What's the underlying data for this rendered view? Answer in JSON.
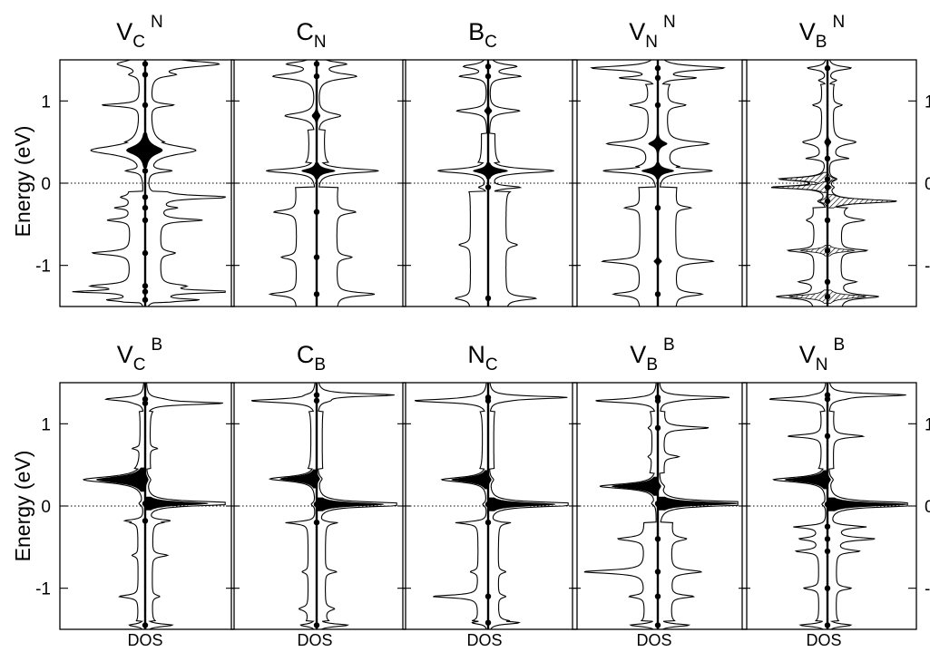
{
  "figure": {
    "ylabel": "Energy (eV)",
    "xlabel": "DOS"
  },
  "chart_data": {
    "type": "line",
    "ylabel": "Energy (eV)",
    "xlabel": "DOS",
    "ylim": [
      -1.5,
      1.5
    ],
    "yticks": [
      -1,
      0,
      1
    ],
    "grid": false,
    "zero_line": "dotted",
    "panels": [
      {
        "row": 0,
        "title": {
          "main": "V",
          "sub": "C",
          "sup": "N"
        },
        "peaks": [
          {
            "e": 1.45,
            "w": 0.09,
            "ls": 0.3,
            "rs": 0.9
          },
          {
            "e": 1.32,
            "w": 0.05,
            "ls": 0.12,
            "rs": 0.25
          },
          {
            "e": 0.95,
            "w": 0.04,
            "ls": 0.5,
            "rs": 0.3
          },
          {
            "e": 0.4,
            "w": 0.13,
            "ls": 0.7,
            "rs": 0.65,
            "fill": 0.35
          },
          {
            "e": 0.15,
            "w": 0.04,
            "ls": 0.2,
            "rs": 0.3
          },
          {
            "e": -0.17,
            "w": 0.04,
            "ls": 0.12,
            "rs": 1.0
          },
          {
            "e": -0.3,
            "w": 0.03,
            "ls": 0.2,
            "rs": 0.2
          },
          {
            "e": -0.45,
            "w": 0.04,
            "ls": 0.3,
            "rs": 0.55
          },
          {
            "e": -0.85,
            "w": 0.05,
            "ls": 0.5,
            "rs": 0.2
          },
          {
            "e": -1.25,
            "w": 0.05,
            "ls": 0.5,
            "rs": 0.3
          },
          {
            "e": -1.32,
            "w": 0.03,
            "ls": 0.7,
            "rs": 1.2
          },
          {
            "e": -1.42,
            "w": 0.03,
            "ls": 0.3,
            "rs": 0.5
          }
        ],
        "bands": [
          [
            -1.45,
            -0.1,
            0.18
          ],
          [
            0.5,
            1.5,
            0.05
          ]
        ]
      },
      {
        "row": 0,
        "title": {
          "main": "C",
          "sub": "N",
          "sup": ""
        },
        "peaks": [
          {
            "e": 1.45,
            "w": 0.06,
            "ls": 0.35,
            "rs": 0.35
          },
          {
            "e": 1.3,
            "w": 0.08,
            "ls": 0.55,
            "rs": 0.5
          },
          {
            "e": 0.82,
            "w": 0.08,
            "ls": 0.4,
            "rs": 0.3,
            "fill": 0.15
          },
          {
            "e": 0.15,
            "w": 0.06,
            "ls": 0.65,
            "rs": 0.8,
            "fill": 0.3
          },
          {
            "e": -0.35,
            "w": 0.05,
            "ls": 0.3,
            "rs": 0.25
          },
          {
            "e": -0.9,
            "w": 0.05,
            "ls": 0.2,
            "rs": 0.2
          },
          {
            "e": -1.35,
            "w": 0.05,
            "ls": 0.35,
            "rs": 0.5
          }
        ],
        "bands": [
          [
            -1.5,
            -0.05,
            0.25
          ],
          [
            0.25,
            0.65,
            0.08
          ]
        ]
      },
      {
        "row": 0,
        "title": {
          "main": "B",
          "sub": "C",
          "sup": ""
        },
        "peaks": [
          {
            "e": 1.42,
            "w": 0.06,
            "ls": 0.3,
            "rs": 0.35
          },
          {
            "e": 1.3,
            "w": 0.05,
            "ls": 0.35,
            "rs": 0.4
          },
          {
            "e": 0.88,
            "w": 0.06,
            "ls": 0.4,
            "rs": 0.4,
            "fill": 0.12
          },
          {
            "e": 0.15,
            "w": 0.06,
            "ls": 0.65,
            "rs": 0.85,
            "fill": 0.3
          },
          {
            "e": -0.05,
            "w": 0.04,
            "ls": 0.1,
            "rs": 0.4
          },
          {
            "e": -0.75,
            "w": 0.05,
            "ls": 0.15,
            "rs": 0.15
          },
          {
            "e": -1.4,
            "w": 0.05,
            "ls": 0.2,
            "rs": 0.4
          }
        ],
        "bands": [
          [
            -1.5,
            -0.1,
            0.22
          ],
          [
            0.25,
            0.6,
            0.07
          ]
        ]
      },
      {
        "row": 0,
        "title": {
          "main": "V",
          "sub": "N",
          "sup": "N"
        },
        "peaks": [
          {
            "e": 1.4,
            "w": 0.06,
            "ls": 0.85,
            "rs": 0.85
          },
          {
            "e": 1.28,
            "w": 0.04,
            "ls": 0.45,
            "rs": 0.45
          },
          {
            "e": 0.95,
            "w": 0.05,
            "ls": 0.25,
            "rs": 0.25
          },
          {
            "e": 0.48,
            "w": 0.07,
            "ls": 0.55,
            "rs": 0.55,
            "fill": 0.22
          },
          {
            "e": 0.15,
            "w": 0.06,
            "ls": 0.7,
            "rs": 0.7,
            "fill": 0.3
          },
          {
            "e": -0.3,
            "w": 0.04,
            "ls": 0.2,
            "rs": 0.2
          },
          {
            "e": -0.95,
            "w": 0.05,
            "ls": 0.5,
            "rs": 0.5,
            "fill": 0.1
          },
          {
            "e": -1.35,
            "w": 0.05,
            "ls": 0.35,
            "rs": 0.35
          }
        ],
        "bands": [
          [
            -1.5,
            -0.05,
            0.22
          ],
          [
            0.2,
            1.2,
            0.1
          ]
        ]
      },
      {
        "row": 0,
        "title": {
          "main": "V",
          "sub": "B",
          "sup": "N"
        },
        "peaks": [
          {
            "e": 1.4,
            "w": 0.05,
            "ls": 0.25,
            "rs": 0.3
          },
          {
            "e": 1.25,
            "w": 0.04,
            "ls": 0.1,
            "rs": 0.1
          },
          {
            "e": 0.95,
            "w": 0.04,
            "ls": 0.12,
            "rs": 0.12
          },
          {
            "e": 0.5,
            "w": 0.07,
            "ls": 0.25,
            "rs": 0.3,
            "fill": 0.15
          },
          {
            "e": 0.3,
            "w": 0.04,
            "ls": 0.2,
            "rs": 0.2
          },
          {
            "e": 0.05,
            "w": 0.05,
            "ls": 0.6,
            "rs": 0.1,
            "hatch": true
          },
          {
            "e": -0.05,
            "w": 0.04,
            "ls": 0.7,
            "rs": 0.05,
            "hatch": true
          },
          {
            "e": -0.22,
            "w": 0.05,
            "ls": 0.1,
            "rs": 0.9,
            "hatch": true
          },
          {
            "e": -0.45,
            "w": 0.05,
            "ls": 0.1,
            "rs": 0.3
          },
          {
            "e": -0.82,
            "w": 0.04,
            "ls": 0.35,
            "rs": 0.35,
            "hatch": true
          },
          {
            "e": -1.2,
            "w": 0.04,
            "ls": 0.2,
            "rs": 0.2
          },
          {
            "e": -1.38,
            "w": 0.05,
            "ls": 0.5,
            "rs": 0.5,
            "hatch": true
          }
        ],
        "bands": [
          [
            -1.5,
            -0.3,
            0.16
          ],
          [
            0.3,
            1.2,
            0.06
          ]
        ]
      },
      {
        "row": 1,
        "title": {
          "main": "V",
          "sub": "C",
          "sup": "B"
        },
        "peaks": [
          {
            "e": 1.3,
            "w": 0.05,
            "ls": 0.5,
            "rs": 0.12
          },
          {
            "e": 1.25,
            "w": 0.04,
            "ls": 0.05,
            "rs": 1.0
          },
          {
            "e": 0.7,
            "w": 0.03,
            "ls": 0.1,
            "rs": 0.1
          },
          {
            "e": 0.32,
            "w": 0.09,
            "ls": 0.8,
            "rs": 0.05,
            "fill": 0.8
          },
          {
            "e": 0.03,
            "w": 0.05,
            "ls": 0.05,
            "rs": 1.5,
            "fill": 0.55
          },
          {
            "e": -0.18,
            "w": 0.04,
            "ls": 0.25,
            "rs": 0.3
          },
          {
            "e": -0.6,
            "w": 0.04,
            "ls": 0.08,
            "rs": 0.2
          },
          {
            "e": -1.1,
            "w": 0.04,
            "ls": 0.25,
            "rs": 0.1
          },
          {
            "e": -1.45,
            "w": 0.04,
            "ls": 0.2,
            "rs": 0.35
          }
        ],
        "bands": [
          [
            -1.4,
            -0.2,
            0.08
          ],
          [
            0.45,
            1.15,
            0.05
          ]
        ]
      },
      {
        "row": 1,
        "title": {
          "main": "C",
          "sub": "B",
          "sup": ""
        },
        "peaks": [
          {
            "e": 1.28,
            "w": 0.05,
            "ls": 0.85,
            "rs": 0.1
          },
          {
            "e": 1.35,
            "w": 0.04,
            "ls": 0.05,
            "rs": 1.0
          },
          {
            "e": 0.33,
            "w": 0.07,
            "ls": 0.6,
            "rs": 0.05,
            "fill": 0.8
          },
          {
            "e": 0.02,
            "w": 0.05,
            "ls": 0.05,
            "rs": 1.6,
            "fill": 0.55
          },
          {
            "e": -0.2,
            "w": 0.04,
            "ls": 0.3,
            "rs": 0.15
          },
          {
            "e": -0.8,
            "w": 0.04,
            "ls": 0.08,
            "rs": 0.15
          },
          {
            "e": -1.25,
            "w": 0.05,
            "ls": 0.12,
            "rs": 0.12
          },
          {
            "e": -1.45,
            "w": 0.04,
            "ls": 0.2,
            "rs": 0.4
          }
        ],
        "bands": [
          [
            -1.4,
            -0.2,
            0.1
          ],
          [
            0.45,
            1.15,
            0.06
          ]
        ]
      },
      {
        "row": 1,
        "title": {
          "main": "N",
          "sub": "C",
          "sup": ""
        },
        "peaks": [
          {
            "e": 1.28,
            "w": 0.05,
            "ls": 0.95,
            "rs": 0.1
          },
          {
            "e": 1.32,
            "w": 0.04,
            "ls": 0.05,
            "rs": 1.0
          },
          {
            "e": 0.32,
            "w": 0.07,
            "ls": 0.6,
            "rs": 0.05,
            "fill": 0.8
          },
          {
            "e": 0.02,
            "w": 0.05,
            "ls": 0.05,
            "rs": 1.6,
            "fill": 0.55
          },
          {
            "e": -0.2,
            "w": 0.04,
            "ls": 0.3,
            "rs": 0.15
          },
          {
            "e": -0.8,
            "w": 0.04,
            "ls": 0.1,
            "rs": 0.1
          },
          {
            "e": -1.1,
            "w": 0.04,
            "ls": 0.6,
            "rs": 0.1
          },
          {
            "e": -1.42,
            "w": 0.04,
            "ls": 0.2,
            "rs": 0.4
          }
        ],
        "bands": [
          [
            -1.4,
            -0.2,
            0.12
          ],
          [
            0.45,
            1.15,
            0.06
          ]
        ]
      },
      {
        "row": 1,
        "title": {
          "main": "V",
          "sub": "B",
          "sup": "B"
        },
        "peaks": [
          {
            "e": 1.28,
            "w": 0.05,
            "ls": 0.8,
            "rs": 0.1
          },
          {
            "e": 1.32,
            "w": 0.04,
            "ls": 0.05,
            "rs": 0.9
          },
          {
            "e": 0.95,
            "w": 0.04,
            "ls": 0.05,
            "rs": 0.6
          },
          {
            "e": 0.6,
            "w": 0.04,
            "ls": 0.05,
            "rs": 0.2
          },
          {
            "e": 0.24,
            "w": 0.07,
            "ls": 0.75,
            "rs": 0.05,
            "fill": 0.8
          },
          {
            "e": 0.03,
            "w": 0.05,
            "ls": 0.05,
            "rs": 1.9,
            "fill": 0.55
          },
          {
            "e": -0.4,
            "w": 0.05,
            "ls": 0.35,
            "rs": 0.2
          },
          {
            "e": -0.8,
            "w": 0.05,
            "ls": 0.8,
            "rs": 0.4
          },
          {
            "e": -1.1,
            "w": 0.04,
            "ls": 0.2,
            "rs": 0.3
          },
          {
            "e": -1.45,
            "w": 0.04,
            "ls": 0.35,
            "rs": 0.4
          }
        ],
        "bands": [
          [
            -1.4,
            -0.2,
            0.16
          ],
          [
            0.4,
            1.15,
            0.06
          ]
        ]
      },
      {
        "row": 1,
        "title": {
          "main": "V",
          "sub": "N",
          "sup": "B"
        },
        "peaks": [
          {
            "e": 1.3,
            "w": 0.05,
            "ls": 0.75,
            "rs": 0.1
          },
          {
            "e": 1.35,
            "w": 0.04,
            "ls": 0.05,
            "rs": 1.0
          },
          {
            "e": 0.85,
            "w": 0.04,
            "ls": 0.45,
            "rs": 0.4
          },
          {
            "e": 0.32,
            "w": 0.07,
            "ls": 0.7,
            "rs": 0.05,
            "fill": 0.8
          },
          {
            "e": 0.02,
            "w": 0.05,
            "ls": 0.05,
            "rs": 1.9,
            "fill": 0.55
          },
          {
            "e": -0.25,
            "w": 0.04,
            "ls": 0.35,
            "rs": 0.4
          },
          {
            "e": -0.4,
            "w": 0.04,
            "ls": 0.25,
            "rs": 0.5
          },
          {
            "e": -0.55,
            "w": 0.04,
            "ls": 0.3,
            "rs": 0.3
          },
          {
            "e": -1.0,
            "w": 0.04,
            "ls": 0.2,
            "rs": 0.2
          },
          {
            "e": -1.45,
            "w": 0.04,
            "ls": 0.35,
            "rs": 0.3
          }
        ],
        "bands": [
          [
            -1.4,
            -0.25,
            0.1
          ],
          [
            0.45,
            1.15,
            0.06
          ]
        ]
      }
    ]
  }
}
